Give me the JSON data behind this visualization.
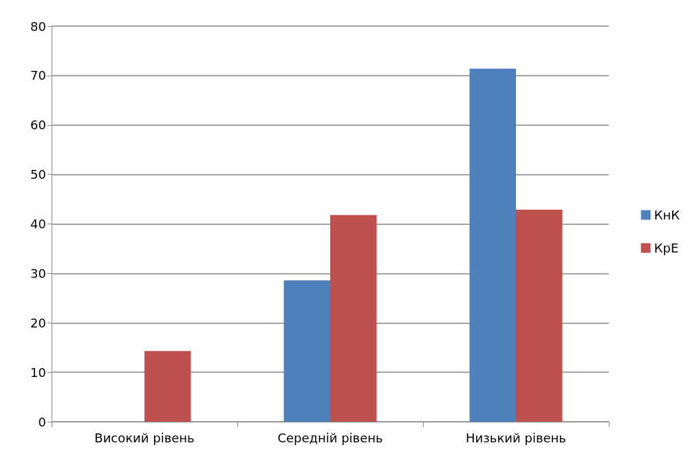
{
  "chart_data": {
    "type": "bar",
    "categories": [
      "Високий рівень",
      "Середній рівень",
      "Низький рівень"
    ],
    "series": [
      {
        "name": "КнК",
        "color": "#4f81bd",
        "values": [
          0,
          28.6,
          71.4
        ]
      },
      {
        "name": "КрЕ",
        "color": "#c0504d",
        "values": [
          14.3,
          41.8,
          42.9
        ]
      }
    ],
    "ylim": [
      0,
      80
    ],
    "yticks": [
      0,
      10,
      20,
      30,
      40,
      50,
      60,
      70,
      80
    ],
    "grid": "y",
    "legend": "right"
  }
}
